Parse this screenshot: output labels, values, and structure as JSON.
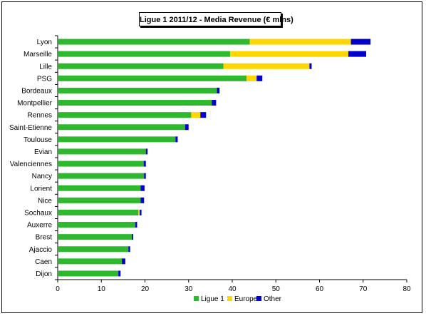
{
  "chart_data": {
    "type": "bar",
    "orientation": "horizontal",
    "stacked": true,
    "title": "Ligue 1 2011/12 - Media Revenue (€ mlns)",
    "categories": [
      "Lyon",
      "Marseille",
      "Lille",
      "PSG",
      "Bordeaux",
      "Montpellier",
      "Rennes",
      "Saint-Etienne",
      "Toulouse",
      "Evian",
      "Valenciennes",
      "Nancy",
      "Lorient",
      "Nice",
      "Sochaux",
      "Auxerre",
      "Brest",
      "Ajaccio",
      "Caen",
      "Dijon"
    ],
    "series": [
      {
        "name": "Ligue 1",
        "color": "#2DB82D",
        "values": [
          44.0,
          39.5,
          38.0,
          43.3,
          36.5,
          35.3,
          30.6,
          29.2,
          27.0,
          20.2,
          19.7,
          19.8,
          19.0,
          19.0,
          18.5,
          17.8,
          17.0,
          16.2,
          14.7,
          13.9
        ]
      },
      {
        "name": "Europe",
        "color": "#FFD700",
        "values": [
          23.2,
          27.1,
          19.7,
          2.3,
          0.0,
          0.0,
          2.1,
          0.0,
          0.0,
          0.0,
          0.0,
          0.0,
          0.0,
          0.0,
          0.3,
          0.0,
          0.0,
          0.0,
          0.0,
          0.0
        ]
      },
      {
        "name": "Other",
        "color": "#0000CC",
        "values": [
          4.5,
          4.1,
          0.5,
          1.3,
          0.6,
          1.0,
          1.3,
          0.8,
          0.5,
          0.4,
          0.5,
          0.4,
          0.9,
          0.8,
          0.4,
          0.4,
          0.3,
          0.4,
          0.8,
          0.5
        ]
      }
    ],
    "xlim": [
      0,
      80
    ],
    "xticks": [
      "0",
      "10",
      "20",
      "30",
      "40",
      "50",
      "60",
      "70",
      "80"
    ],
    "grid": false,
    "legend": "bottom-center"
  }
}
